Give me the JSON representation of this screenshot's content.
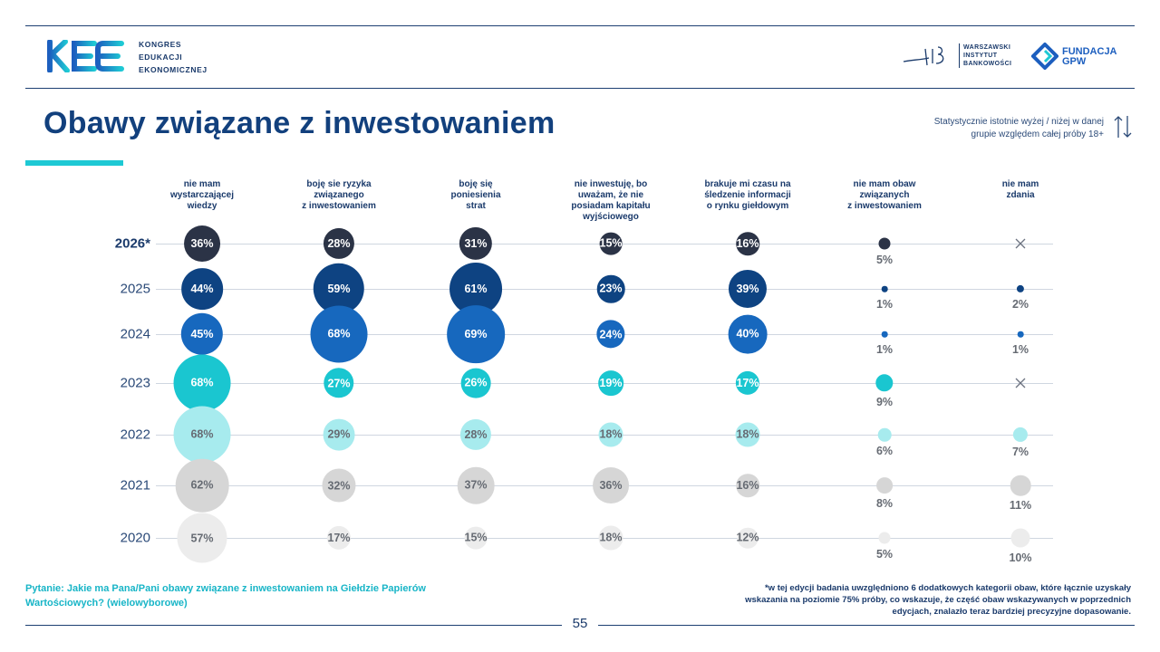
{
  "header": {
    "logo_text": [
      "KONGRES",
      "EDUKACJI",
      "EKONOMICZNEJ"
    ],
    "partner1": [
      "WARSZAWSKI",
      "INSTYTUT",
      "BANKOWOŚCI"
    ],
    "partner2": [
      "FUNDACJA",
      "GPW"
    ]
  },
  "title": "Obawy związane z inwestowaniem",
  "note": [
    "Statystycznie istotnie wyżej / niżej w danej",
    "grupie względem całej próby 18+"
  ],
  "icons": {
    "arrows": "up-down-arrows-icon",
    "missing": "cross-icon"
  },
  "colors": {
    "2026*": "#2b3346",
    "2025": "#0e4382",
    "2024": "#1768be",
    "2023": "#1ac6d0",
    "2022": "#a7ebee",
    "2021": "#d6d6d6",
    "2020": "#ececec",
    "text_dark": "#ffffff",
    "text_light": "#666b73"
  },
  "chart_data": {
    "type": "bubble",
    "title": "Obawy związane z inwestowaniem",
    "years": [
      "2026*",
      "2025",
      "2024",
      "2023",
      "2022",
      "2021",
      "2020"
    ],
    "categories": [
      {
        "lines": [
          "nie mam",
          "wystarczającej",
          "wiedzy"
        ],
        "values": [
          36,
          44,
          45,
          68,
          68,
          62,
          57
        ]
      },
      {
        "lines": [
          "boję sie ryzyka",
          "związanego",
          "z inwestowaniem"
        ],
        "values": [
          28,
          59,
          68,
          27,
          29,
          32,
          17
        ]
      },
      {
        "lines": [
          "boję się",
          "poniesienia",
          "strat"
        ],
        "values": [
          31,
          61,
          69,
          26,
          28,
          37,
          15
        ]
      },
      {
        "lines": [
          "nie inwestuję, bo",
          "uważam, że nie",
          "posiadam kapitału",
          "wyjściowego"
        ],
        "values": [
          15,
          23,
          24,
          19,
          18,
          36,
          18
        ]
      },
      {
        "lines": [
          "brakuje mi czasu na",
          "śledzenie informacji",
          "o rynku giełdowym"
        ],
        "values": [
          16,
          39,
          40,
          17,
          18,
          16,
          12
        ]
      },
      {
        "lines": [
          "nie mam obaw",
          "związanych",
          "z inwestowaniem"
        ],
        "values": [
          5,
          1,
          1,
          9,
          6,
          8,
          5
        ]
      },
      {
        "lines": [
          "nie mam",
          "zdania"
        ],
        "values": [
          null,
          2,
          1,
          null,
          7,
          11,
          10
        ]
      }
    ],
    "value_suffix": "%"
  },
  "footer": {
    "question": "Pytanie:  Jakie ma Pana/Pani obawy związane z inwestowaniem na Giełdzie Papierów Wartościowych? (wielowyborowe)",
    "footnote": "*w tej edycji badania uwzględniono 6 dodatkowych kategorii obaw, które łącznie uzyskały wskazania na poziomie 75% próby, co wskazuje, że część obaw wskazywanych w poprzednich edycjach, znalazło teraz bardziej precyzyjne dopasowanie.",
    "page": "55"
  }
}
